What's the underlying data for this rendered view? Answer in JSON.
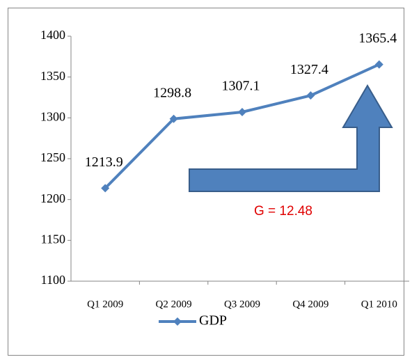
{
  "chart_data": {
    "type": "line",
    "categories": [
      "Q1 2009",
      "Q2 2009",
      "Q3 2009",
      "Q4 2009",
      "Q1 2010"
    ],
    "series": [
      {
        "name": "GDP",
        "color": "#4f81bd",
        "values": [
          1213.9,
          1298.8,
          1307.1,
          1327.4,
          1365.4
        ]
      }
    ],
    "ylim": [
      1100,
      1400
    ],
    "yticks": [
      1100,
      1150,
      1200,
      1250,
      1300,
      1350,
      1400
    ],
    "annotation": "G = 12.48",
    "legend": "bottom",
    "grid": false
  }
}
